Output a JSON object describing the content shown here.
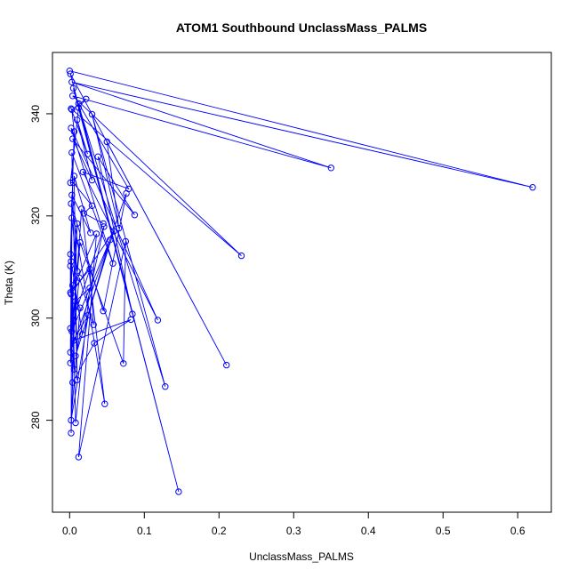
{
  "chart_data": {
    "type": "line",
    "title": "ATOM1 Southbound UnclassMass_PALMS",
    "xlabel": "UnclassMass_PALMS",
    "ylabel": "Theta (K)",
    "xlim": [
      -0.023,
      0.645
    ],
    "ylim": [
      262,
      352
    ],
    "xticks": [
      0.0,
      0.1,
      0.2,
      0.3,
      0.4,
      0.5,
      0.6
    ],
    "xtick_labels": [
      "0.0",
      "0.1",
      "0.2",
      "0.3",
      "0.4",
      "0.5",
      "0.6"
    ],
    "yticks": [
      280,
      300,
      320,
      340
    ],
    "ytick_labels": [
      "280",
      "300",
      "320",
      "340"
    ],
    "grid": false,
    "series": [
      {
        "color": "#0000ff",
        "points": [
          [
            0.0,
            348.4
          ],
          [
            0.001,
            347.8
          ],
          [
            0.003,
            346.2
          ],
          [
            0.005,
            345.0
          ],
          [
            0.004,
            343.5
          ],
          [
            0.012,
            342.0
          ],
          [
            0.002,
            341.0
          ],
          [
            0.03,
            339.9
          ],
          [
            0.01,
            338.8
          ],
          [
            0.002,
            337.2
          ],
          [
            0.004,
            335.1
          ],
          [
            0.05,
            334.5
          ],
          [
            0.024,
            332.1
          ],
          [
            0.003,
            332.4
          ],
          [
            0.038,
            331.6
          ],
          [
            0.35,
            329.4
          ],
          [
            0.018,
            328.6
          ],
          [
            0.006,
            327.8
          ],
          [
            0.03,
            327.0
          ],
          [
            0.62,
            325.6
          ],
          [
            0.079,
            325.3
          ],
          [
            0.003,
            324.1
          ],
          [
            0.076,
            324.4
          ],
          [
            0.002,
            322.4
          ],
          [
            0.016,
            321.4
          ],
          [
            0.087,
            320.2
          ],
          [
            0.003,
            319.6
          ],
          [
            0.01,
            318.5
          ],
          [
            0.066,
            317.6
          ],
          [
            0.046,
            317.9
          ],
          [
            0.059,
            317.0
          ],
          [
            0.036,
            316.5
          ],
          [
            0.028,
            316.7
          ],
          [
            0.075,
            315.0
          ],
          [
            0.014,
            314.8
          ],
          [
            0.054,
            315.3
          ],
          [
            0.23,
            312.2
          ],
          [
            0.002,
            311.1
          ],
          [
            0.058,
            310.7
          ],
          [
            0.001,
            310.2
          ],
          [
            0.01,
            309.2
          ],
          [
            0.027,
            309.6
          ],
          [
            0.013,
            307.9
          ],
          [
            0.004,
            306.4
          ],
          [
            0.027,
            305.9
          ],
          [
            0.001,
            305.0
          ],
          [
            0.002,
            304.7
          ],
          [
            0.008,
            303.3
          ],
          [
            0.014,
            302.0
          ],
          [
            0.045,
            301.4
          ],
          [
            0.084,
            300.8
          ],
          [
            0.025,
            300.6
          ],
          [
            0.118,
            299.6
          ],
          [
            0.082,
            299.7
          ],
          [
            0.032,
            298.7
          ],
          [
            0.001,
            298.0
          ],
          [
            0.003,
            297.4
          ],
          [
            0.017,
            296.8
          ],
          [
            0.005,
            295.6
          ],
          [
            0.033,
            295.1
          ],
          [
            0.001,
            293.3
          ],
          [
            0.008,
            292.6
          ],
          [
            0.001,
            291.2
          ],
          [
            0.072,
            291.1
          ],
          [
            0.21,
            290.8
          ],
          [
            0.006,
            290.0
          ],
          [
            0.01,
            287.9
          ],
          [
            0.004,
            287.4
          ],
          [
            0.128,
            286.6
          ],
          [
            0.047,
            283.2
          ],
          [
            0.002,
            280.0
          ],
          [
            0.008,
            279.5
          ],
          [
            0.002,
            277.5
          ],
          [
            0.012,
            272.8
          ],
          [
            0.146,
            266.0
          ],
          [
            0.001,
            312.5
          ],
          [
            0.006,
            336.5
          ],
          [
            0.003,
            340.8
          ],
          [
            0.022,
            342.9
          ],
          [
            0.012,
            341.2
          ],
          [
            0.001,
            326.5
          ],
          [
            0.005,
            326.5
          ],
          [
            0.03,
            322.0
          ],
          [
            0.019,
            320.5
          ],
          [
            0.045,
            318.5
          ]
        ],
        "path_order": [
          0,
          19,
          2,
          15,
          4,
          36,
          6,
          12,
          8,
          18,
          10,
          25,
          14,
          50,
          3,
          68,
          7,
          28,
          11,
          64,
          1,
          74,
          5,
          20,
          16,
          52,
          9,
          38,
          13,
          66,
          17,
          32,
          21,
          60,
          22,
          49,
          23,
          69,
          24,
          40,
          26,
          72,
          27,
          55,
          29,
          61,
          30,
          46,
          31,
          73,
          33,
          63,
          34,
          56,
          35,
          57,
          37,
          65,
          39,
          45,
          41,
          54,
          42,
          62,
          43,
          71,
          44,
          47,
          48,
          70,
          51,
          58,
          53,
          59,
          67,
          75,
          76,
          77,
          78,
          79,
          80,
          81,
          82,
          83,
          84
        ]
      }
    ]
  }
}
